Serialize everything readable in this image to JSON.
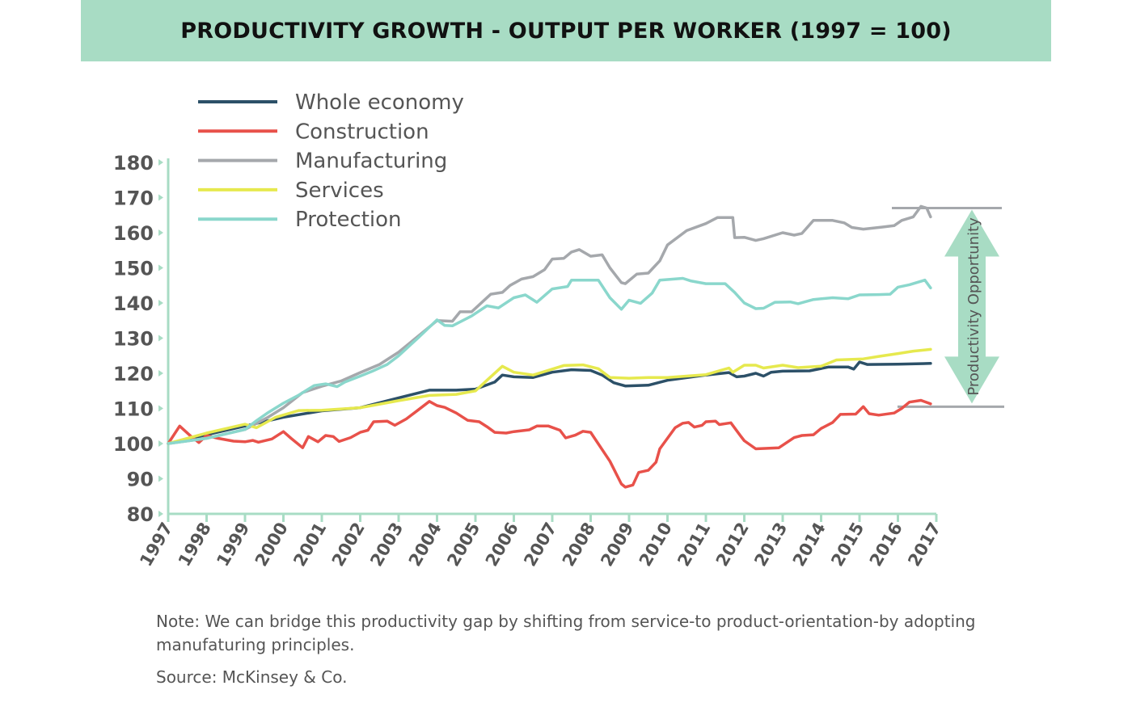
{
  "title": "PRODUCTIVITY GROWTH - OUTPUT PER WORKER (1997 = 100)",
  "note": "Note: We can bridge this productivity gap by shifting from service-to product-orientation-by adopting manufaturing principles.",
  "source": "Source: McKinsey & Co.",
  "colors": {
    "title_band": "#a8dcc4",
    "axis": "#a8dcc4",
    "annotation_arrow": "#a8dcc4",
    "annotation_lines": "#a5a8ac"
  },
  "chart_data": {
    "type": "line",
    "title": "PRODUCTIVITY GROWTH - OUTPUT PER WORKER (1997 = 100)",
    "xlabel": "",
    "ylabel": "",
    "xlim": [
      1997,
      2017
    ],
    "ylim": [
      80,
      180
    ],
    "grid": false,
    "legend_position": "top-left",
    "x_ticks": [
      "1997",
      "1998",
      "1999",
      "2000",
      "2001",
      "2002",
      "2003",
      "2004",
      "2005",
      "2006",
      "2007",
      "2008",
      "2009",
      "2010",
      "2011",
      "2012",
      "2013",
      "2014",
      "2015",
      "2016",
      "2017"
    ],
    "y_ticks": [
      "80",
      "90",
      "100",
      "110",
      "120",
      "130",
      "140",
      "150",
      "160",
      "170",
      "180"
    ],
    "series": [
      {
        "name": "Whole economy",
        "color": "#2c5068",
        "points": [
          [
            1997,
            100
          ],
          [
            1998,
            102.5
          ],
          [
            1999,
            105
          ],
          [
            2000,
            107.5
          ],
          [
            2001,
            109.3
          ],
          [
            2002,
            110.2
          ],
          [
            2003,
            113
          ],
          [
            2003.8,
            115.2
          ],
          [
            2004.5,
            115.2
          ],
          [
            2005,
            115.5
          ],
          [
            2005.5,
            117.5
          ],
          [
            2005.7,
            119.5
          ],
          [
            2006,
            119
          ],
          [
            2006.5,
            118.8
          ],
          [
            2007,
            120.3
          ],
          [
            2007.5,
            121
          ],
          [
            2008,
            120.8
          ],
          [
            2008.3,
            119.5
          ],
          [
            2008.6,
            117.3
          ],
          [
            2008.9,
            116.4
          ],
          [
            2009.5,
            116.6
          ],
          [
            2010,
            118
          ],
          [
            2011,
            119.5
          ],
          [
            2011.6,
            120.2
          ],
          [
            2011.8,
            119
          ],
          [
            2012,
            119.2
          ],
          [
            2012.3,
            120
          ],
          [
            2012.5,
            119.2
          ],
          [
            2012.7,
            120.3
          ],
          [
            2013,
            120.6
          ],
          [
            2013.7,
            120.7
          ],
          [
            2014.2,
            121.8
          ],
          [
            2014.7,
            121.8
          ],
          [
            2014.85,
            121.2
          ],
          [
            2015,
            123.2
          ],
          [
            2015.2,
            122.5
          ],
          [
            2016,
            122.6
          ],
          [
            2016.85,
            122.8
          ]
        ]
      },
      {
        "name": "Construction",
        "color": "#e8514a",
        "points": [
          [
            1997,
            100
          ],
          [
            1997.3,
            105
          ],
          [
            1997.6,
            102
          ],
          [
            1997.8,
            100.3
          ],
          [
            1998,
            102.3
          ],
          [
            1998.3,
            101.5
          ],
          [
            1998.7,
            100.7
          ],
          [
            1999,
            100.5
          ],
          [
            1999.2,
            100.9
          ],
          [
            1999.35,
            100.4
          ],
          [
            1999.7,
            101.3
          ],
          [
            2000,
            103.4
          ],
          [
            2000.2,
            101.5
          ],
          [
            2000.5,
            98.8
          ],
          [
            2000.65,
            102
          ],
          [
            2000.9,
            100.5
          ],
          [
            2001.1,
            102.3
          ],
          [
            2001.3,
            102
          ],
          [
            2001.45,
            100.6
          ],
          [
            2001.75,
            101.7
          ],
          [
            2002,
            103.2
          ],
          [
            2002.2,
            103.8
          ],
          [
            2002.35,
            106.2
          ],
          [
            2002.7,
            106.4
          ],
          [
            2002.9,
            105.2
          ],
          [
            2003.2,
            107
          ],
          [
            2003.5,
            109.5
          ],
          [
            2003.8,
            112
          ],
          [
            2004,
            110.8
          ],
          [
            2004.2,
            110.3
          ],
          [
            2004.5,
            108.7
          ],
          [
            2004.8,
            106.6
          ],
          [
            2005.1,
            106.2
          ],
          [
            2005.3,
            104.8
          ],
          [
            2005.5,
            103.2
          ],
          [
            2005.8,
            103
          ],
          [
            2006,
            103.4
          ],
          [
            2006.4,
            103.9
          ],
          [
            2006.6,
            105
          ],
          [
            2006.9,
            105
          ],
          [
            2007.2,
            103.8
          ],
          [
            2007.35,
            101.6
          ],
          [
            2007.6,
            102.4
          ],
          [
            2007.8,
            103.5
          ],
          [
            2008,
            103.2
          ],
          [
            2008.5,
            95
          ],
          [
            2008.8,
            88.5
          ],
          [
            2008.9,
            87.6
          ],
          [
            2009.1,
            88.2
          ],
          [
            2009.25,
            91.8
          ],
          [
            2009.5,
            92.4
          ],
          [
            2009.7,
            94.7
          ],
          [
            2009.8,
            98.5
          ],
          [
            2010.2,
            104.5
          ],
          [
            2010.4,
            105.8
          ],
          [
            2010.55,
            106
          ],
          [
            2010.7,
            104.7
          ],
          [
            2010.9,
            105.2
          ],
          [
            2011,
            106.2
          ],
          [
            2011.25,
            106.4
          ],
          [
            2011.35,
            105.4
          ],
          [
            2011.65,
            105.9
          ],
          [
            2011.9,
            102.2
          ],
          [
            2012,
            100.8
          ],
          [
            2012.3,
            98.5
          ],
          [
            2012.9,
            98.8
          ],
          [
            2013.3,
            101.7
          ],
          [
            2013.5,
            102.3
          ],
          [
            2013.8,
            102.5
          ],
          [
            2014,
            104.3
          ],
          [
            2014.3,
            106
          ],
          [
            2014.5,
            108.3
          ],
          [
            2014.9,
            108.4
          ],
          [
            2015.1,
            110.5
          ],
          [
            2015.25,
            108.5
          ],
          [
            2015.5,
            108.1
          ],
          [
            2015.9,
            108.7
          ],
          [
            2016.1,
            110
          ],
          [
            2016.3,
            111.8
          ],
          [
            2016.6,
            112.3
          ],
          [
            2016.85,
            111.3
          ]
        ]
      },
      {
        "name": "Manufacturing",
        "color": "#a5a8ac",
        "points": [
          [
            1997,
            100
          ],
          [
            1998,
            101.5
          ],
          [
            1999,
            104
          ],
          [
            1999.6,
            107.5
          ],
          [
            2000,
            110.2
          ],
          [
            2000.5,
            114.5
          ],
          [
            2001,
            116.3
          ],
          [
            2001.5,
            117.8
          ],
          [
            2002,
            120.2
          ],
          [
            2002.5,
            122.5
          ],
          [
            2003,
            126
          ],
          [
            2003.5,
            130.5
          ],
          [
            2004,
            135
          ],
          [
            2004.4,
            134.8
          ],
          [
            2004.6,
            137.5
          ],
          [
            2004.9,
            137.5
          ],
          [
            2005.2,
            140.5
          ],
          [
            2005.4,
            142.5
          ],
          [
            2005.7,
            143
          ],
          [
            2005.9,
            145
          ],
          [
            2006.2,
            146.8
          ],
          [
            2006.5,
            147.5
          ],
          [
            2006.8,
            149.5
          ],
          [
            2007,
            152.5
          ],
          [
            2007.3,
            152.7
          ],
          [
            2007.5,
            154.5
          ],
          [
            2007.7,
            155.2
          ],
          [
            2008,
            153.3
          ],
          [
            2008.3,
            153.7
          ],
          [
            2008.5,
            150
          ],
          [
            2008.8,
            145.8
          ],
          [
            2008.9,
            145.5
          ],
          [
            2009.2,
            148.2
          ],
          [
            2009.5,
            148.5
          ],
          [
            2009.8,
            152
          ],
          [
            2010,
            156.5
          ],
          [
            2010.5,
            160.6
          ],
          [
            2011,
            162.6
          ],
          [
            2011.3,
            164.3
          ],
          [
            2011.7,
            164.3
          ],
          [
            2011.75,
            158.6
          ],
          [
            2012,
            158.7
          ],
          [
            2012.3,
            157.8
          ],
          [
            2012.5,
            158.3
          ],
          [
            2013,
            160
          ],
          [
            2013.3,
            159.3
          ],
          [
            2013.5,
            159.8
          ],
          [
            2013.8,
            163.5
          ],
          [
            2014.3,
            163.5
          ],
          [
            2014.6,
            162.8
          ],
          [
            2014.8,
            161.5
          ],
          [
            2015.1,
            161
          ],
          [
            2015.6,
            161.6
          ],
          [
            2015.9,
            162
          ],
          [
            2016.1,
            163.5
          ],
          [
            2016.4,
            164.5
          ],
          [
            2016.6,
            167.5
          ],
          [
            2016.75,
            167
          ],
          [
            2016.85,
            164.5
          ]
        ]
      },
      {
        "name": "Services",
        "color": "#e6e94e",
        "points": [
          [
            1997,
            100
          ],
          [
            1998,
            103
          ],
          [
            1999,
            105.5
          ],
          [
            1999.3,
            104.5
          ],
          [
            1999.8,
            107.5
          ],
          [
            2000.4,
            109.4
          ],
          [
            2001,
            109.5
          ],
          [
            2002,
            110.2
          ],
          [
            2003,
            112.2
          ],
          [
            2003.8,
            113.7
          ],
          [
            2004.5,
            114
          ],
          [
            2005,
            115
          ],
          [
            2005.3,
            118
          ],
          [
            2005.7,
            122
          ],
          [
            2006,
            120.3
          ],
          [
            2006.5,
            119.5
          ],
          [
            2006.8,
            120.5
          ],
          [
            2007.3,
            122.2
          ],
          [
            2007.8,
            122.4
          ],
          [
            2008.2,
            121.3
          ],
          [
            2008.5,
            118.8
          ],
          [
            2009,
            118.6
          ],
          [
            2009.5,
            118.8
          ],
          [
            2010,
            118.8
          ],
          [
            2011,
            119.6
          ],
          [
            2011.6,
            121.5
          ],
          [
            2011.7,
            120.3
          ],
          [
            2012,
            122.3
          ],
          [
            2012.3,
            122.3
          ],
          [
            2012.5,
            121.5
          ],
          [
            2013,
            122.3
          ],
          [
            2013.4,
            121.6
          ],
          [
            2014,
            122
          ],
          [
            2014.4,
            123.8
          ],
          [
            2015.1,
            124.1
          ],
          [
            2015.5,
            124.8
          ],
          [
            2016,
            125.6
          ],
          [
            2016.4,
            126.3
          ],
          [
            2016.85,
            126.8
          ]
        ]
      },
      {
        "name": "Protection",
        "color": "#8ad7cc",
        "points": [
          [
            1997,
            100
          ],
          [
            1998,
            101.5
          ],
          [
            1999,
            104
          ],
          [
            1999.3,
            106.5
          ],
          [
            1999.6,
            108.8
          ],
          [
            2000,
            111.5
          ],
          [
            2000.4,
            113.8
          ],
          [
            2000.8,
            116.5
          ],
          [
            2001.1,
            117
          ],
          [
            2001.4,
            116.2
          ],
          [
            2001.6,
            117.5
          ],
          [
            2002,
            119.2
          ],
          [
            2002.3,
            120.5
          ],
          [
            2002.7,
            122.5
          ],
          [
            2003,
            125
          ],
          [
            2003.5,
            130
          ],
          [
            2004,
            135.2
          ],
          [
            2004.2,
            133.6
          ],
          [
            2004.4,
            133.5
          ],
          [
            2004.9,
            136.3
          ],
          [
            2005.3,
            139.2
          ],
          [
            2005.6,
            138.6
          ],
          [
            2006,
            141.5
          ],
          [
            2006.3,
            142.3
          ],
          [
            2006.6,
            140.2
          ],
          [
            2007,
            144
          ],
          [
            2007.4,
            144.7
          ],
          [
            2007.5,
            146.5
          ],
          [
            2008.2,
            146.5
          ],
          [
            2008.5,
            141.5
          ],
          [
            2008.8,
            138.2
          ],
          [
            2009,
            140.8
          ],
          [
            2009.3,
            139.9
          ],
          [
            2009.6,
            142.8
          ],
          [
            2009.8,
            146.5
          ],
          [
            2010.4,
            147
          ],
          [
            2010.6,
            146.3
          ],
          [
            2011,
            145.5
          ],
          [
            2011.5,
            145.5
          ],
          [
            2011.75,
            143
          ],
          [
            2012,
            140
          ],
          [
            2012.3,
            138.4
          ],
          [
            2012.5,
            138.5
          ],
          [
            2012.8,
            140.2
          ],
          [
            2013.2,
            140.3
          ],
          [
            2013.4,
            139.8
          ],
          [
            2013.8,
            141
          ],
          [
            2014.3,
            141.5
          ],
          [
            2014.7,
            141.2
          ],
          [
            2015,
            142.3
          ],
          [
            2015.5,
            142.4
          ],
          [
            2015.8,
            142.5
          ],
          [
            2016,
            144.5
          ],
          [
            2016.3,
            145.2
          ],
          [
            2016.7,
            146.5
          ],
          [
            2016.85,
            144.3
          ]
        ]
      }
    ],
    "annotation": {
      "label": "Productivity Opportunity",
      "upper": 167,
      "lower": 110.5
    }
  }
}
